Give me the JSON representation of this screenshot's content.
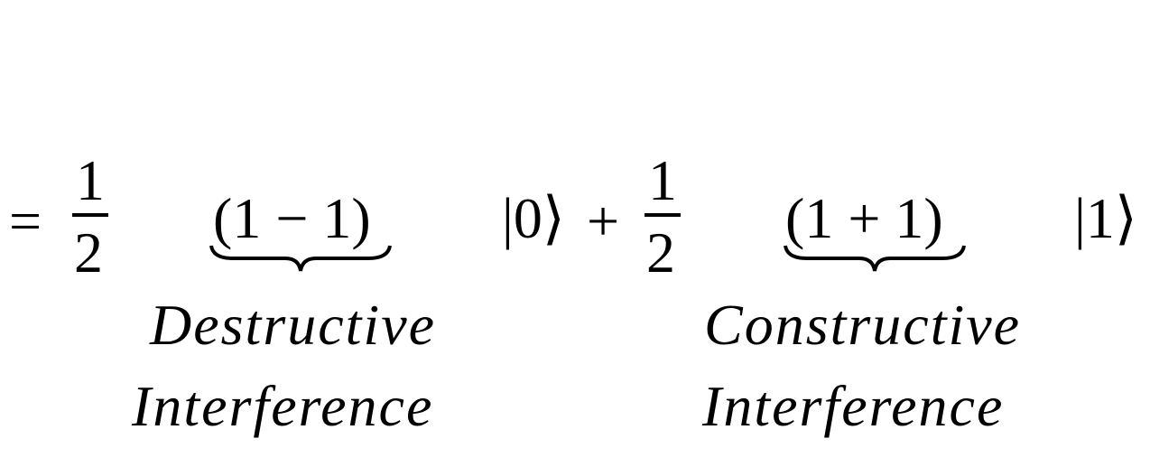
{
  "equation": {
    "equals": "=",
    "frac1": {
      "numerator": "1",
      "denominator": "2"
    },
    "term1": {
      "group": "(1 − 1)",
      "label_line1": "Destructive",
      "label_line2": "Interference"
    },
    "ket0": "|0⟩",
    "plus": "+",
    "frac2": {
      "numerator": "1",
      "denominator": "2"
    },
    "term2": {
      "group": "(1 + 1)",
      "label_line1": "Constructive",
      "label_line2": "Interference"
    },
    "ket1": "|1⟩"
  }
}
